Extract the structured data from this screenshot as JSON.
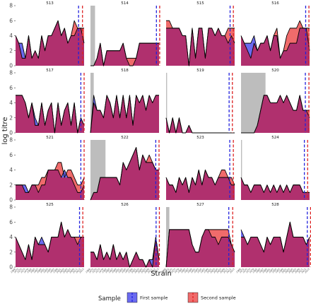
{
  "chart_data": {
    "type": "area",
    "ylabel": "log titre",
    "xlabel": "Strain",
    "ylim": [
      0,
      8
    ],
    "yticks": [
      0,
      2,
      4,
      6,
      8
    ],
    "grid": false,
    "legend": {
      "title": "Sample",
      "placement": "bottom",
      "entries": [
        {
          "name": "First sample",
          "fill": "#6b6bf0",
          "line": "#2222dd"
        },
        {
          "name": "Second sample",
          "fill": "#f06b6b",
          "line": "#dd2222"
        }
      ]
    },
    "overlap_color": "#b0306e",
    "shade_color": "#bdbdbd",
    "strain_ticks": [
      "1968",
      "1972",
      "1975",
      "1977",
      "1979",
      "1982",
      "1985",
      "1987",
      "1989",
      "1991",
      "1993",
      "1995",
      "1997",
      "1999",
      "2001",
      "2003",
      "2005",
      "2007",
      "2009",
      "2011",
      "2012",
      "2013"
    ],
    "panels": [
      {
        "id": "513",
        "first": [
          4,
          3,
          3,
          1,
          4,
          1,
          2,
          1,
          4,
          2,
          4,
          4,
          5,
          6,
          4,
          5,
          3,
          4,
          4,
          5,
          5,
          3
        ],
        "second": [
          4,
          3,
          1,
          1,
          4,
          1,
          2,
          1,
          4,
          2,
          4,
          4,
          5,
          6,
          4,
          5,
          3,
          4,
          6,
          5,
          5,
          5
        ],
        "shade_end": null,
        "vline1": 19.3,
        "vline2": 20.5
      },
      {
        "id": "514",
        "first": [
          0,
          0,
          1,
          3,
          0,
          2,
          2,
          2,
          2,
          2,
          3,
          1,
          0,
          0,
          1,
          3,
          3,
          3,
          3,
          3,
          3,
          3
        ],
        "second": [
          0,
          0,
          1,
          3,
          0,
          2,
          2,
          2,
          2,
          2,
          3,
          1,
          1,
          1,
          1,
          3,
          3,
          3,
          3,
          3,
          3,
          3
        ],
        "shade_end": 1.4,
        "vline1": 20.2,
        "vline2": 21.2
      },
      {
        "id": "515",
        "first": [
          5,
          5,
          5,
          5,
          5,
          4,
          4,
          0,
          5,
          1,
          5,
          5,
          1,
          5,
          5,
          4,
          5,
          4,
          4,
          3,
          4,
          3
        ],
        "second": [
          6,
          6,
          5,
          5,
          5,
          4,
          4,
          0,
          5,
          1,
          5,
          5,
          1,
          5,
          5,
          4,
          5,
          4,
          4,
          5,
          5,
          5
        ],
        "shade_end": null,
        "vline1": 19.6,
        "vline2": 20.6
      },
      {
        "id": "516",
        "first": [
          4,
          3,
          3,
          3,
          4,
          2,
          3,
          3,
          4,
          2,
          4,
          4,
          1,
          2,
          2,
          3,
          3,
          3,
          5,
          5,
          5,
          2
        ],
        "second": [
          4,
          3,
          2,
          1,
          3,
          2,
          3,
          3,
          4,
          2,
          4,
          5,
          1,
          2,
          4,
          5,
          5,
          5,
          6,
          5,
          5,
          5
        ],
        "shade_end": null,
        "vline1": 19.8,
        "vline2": 20.8
      },
      {
        "id": "517",
        "first": [
          5,
          5,
          5,
          4,
          2,
          4,
          2,
          1,
          4,
          1,
          3,
          4,
          0,
          4,
          1,
          3,
          4,
          1,
          4,
          0,
          2,
          1
        ],
        "second": [
          5,
          5,
          5,
          4,
          2,
          4,
          1,
          1,
          4,
          1,
          3,
          4,
          0,
          4,
          1,
          3,
          4,
          1,
          4,
          0,
          2,
          1
        ],
        "shade_end": null,
        "vline1": 20.0,
        "vline2": 21.0
      },
      {
        "id": "518",
        "first": [
          0,
          5,
          3,
          3,
          2,
          5,
          4,
          2,
          5,
          2,
          5,
          2,
          5,
          1,
          5,
          4,
          5,
          3,
          5,
          4,
          5,
          5
        ],
        "second": [
          0,
          4,
          3,
          3,
          2,
          5,
          4,
          2,
          5,
          2,
          5,
          2,
          5,
          1,
          5,
          4,
          5,
          3,
          5,
          4,
          5,
          5
        ],
        "shade_end": 1.0,
        "vline1": null,
        "vline2": null
      },
      {
        "id": "519",
        "first": [
          2,
          0,
          2,
          0,
          2,
          0,
          0,
          1,
          0,
          0,
          0,
          0,
          0,
          0,
          0,
          0,
          0,
          0,
          0,
          0,
          0,
          0
        ],
        "second": [
          2,
          0,
          2,
          0,
          2,
          0,
          0,
          1,
          0,
          0,
          0,
          0,
          0,
          0,
          0,
          0,
          0,
          0,
          0,
          0,
          0,
          0
        ],
        "shade_end": 0.3,
        "vline1": 19.3,
        "vline2": 20.3
      },
      {
        "id": "520",
        "first": [
          0,
          0,
          0,
          0,
          0,
          1,
          3,
          5,
          5,
          4,
          4,
          4,
          5,
          4,
          5,
          4,
          3,
          3,
          5,
          3,
          3,
          2
        ],
        "second": [
          0,
          0,
          0,
          0,
          0,
          1,
          3,
          5,
          5,
          4,
          4,
          4,
          5,
          4,
          5,
          4,
          3,
          3,
          5,
          3,
          3,
          3
        ],
        "shade_end": 7.5,
        "vline1": 19.7,
        "vline2": 20.8
      },
      {
        "id": "521",
        "first": [
          2,
          2,
          2,
          2,
          1,
          2,
          2,
          1,
          2,
          2,
          4,
          4,
          4,
          4,
          3,
          4,
          3,
          3,
          2,
          1,
          1,
          2
        ],
        "second": [
          2,
          2,
          2,
          1,
          1,
          2,
          2,
          2,
          3,
          3,
          4,
          4,
          4,
          5,
          5,
          3,
          4,
          4,
          3,
          2,
          2,
          3
        ],
        "shade_end": null,
        "vline1": 20.0,
        "vline2": 21.0
      },
      {
        "id": "522",
        "first": [
          0,
          1,
          1,
          3,
          3,
          3,
          3,
          3,
          3,
          2,
          5,
          4,
          5,
          6,
          7,
          4,
          6,
          5,
          5,
          5,
          4,
          4
        ],
        "second": [
          0,
          1,
          1,
          3,
          3,
          3,
          3,
          3,
          3,
          2,
          5,
          4,
          5,
          6,
          7,
          4,
          6,
          5,
          6,
          5,
          4,
          4
        ],
        "shade_end": 4.6,
        "vline1": 20.0,
        "vline2": 21.0
      },
      {
        "id": "523",
        "first": [
          3,
          2,
          2,
          1,
          3,
          2,
          3,
          1,
          3,
          2,
          4,
          2,
          4,
          3,
          3,
          2,
          3,
          3,
          3,
          3,
          2,
          2
        ],
        "second": [
          3,
          2,
          2,
          1,
          3,
          2,
          3,
          1,
          3,
          2,
          4,
          2,
          4,
          3,
          3,
          2,
          3,
          4,
          4,
          3,
          3,
          2
        ],
        "shade_end": null,
        "vline1": 19.5,
        "vline2": 20.6
      },
      {
        "id": "524",
        "first": [
          3,
          2,
          2,
          1,
          2,
          2,
          2,
          1,
          2,
          1,
          2,
          1,
          2,
          1,
          2,
          1,
          2,
          2,
          2,
          1,
          1,
          1
        ],
        "second": [
          3,
          2,
          2,
          1,
          2,
          2,
          2,
          1,
          2,
          1,
          2,
          1,
          2,
          1,
          2,
          1,
          2,
          2,
          2,
          1,
          1,
          1
        ],
        "shade_end": 0.3,
        "vline1": 19.4,
        "vline2": 20.4
      },
      {
        "id": "525",
        "first": [
          4,
          3,
          2,
          1,
          3,
          1,
          4,
          3,
          4,
          3,
          2,
          4,
          4,
          4,
          6,
          4,
          5,
          4,
          4,
          3,
          4,
          4
        ],
        "second": [
          4,
          3,
          2,
          1,
          3,
          1,
          4,
          3,
          3,
          3,
          2,
          4,
          4,
          4,
          6,
          4,
          5,
          4,
          4,
          4,
          4,
          4
        ],
        "shade_end": null,
        "vline1": 19.6,
        "vline2": 20.6
      },
      {
        "id": "526",
        "first": [
          2,
          2,
          1,
          3,
          1,
          2,
          1,
          3,
          1,
          2,
          1,
          2,
          0,
          1,
          2,
          1,
          1,
          0,
          1,
          1,
          4,
          1
        ],
        "second": [
          2,
          2,
          1,
          3,
          1,
          2,
          1,
          3,
          1,
          2,
          1,
          2,
          0,
          1,
          2,
          1,
          1,
          0,
          1,
          0,
          4,
          1
        ],
        "shade_end": null,
        "vline1": 20.1,
        "vline2": 21.1
      },
      {
        "id": "527",
        "first": [
          0,
          5,
          5,
          5,
          5,
          5,
          5,
          5,
          3,
          2,
          2,
          4,
          5,
          5,
          4,
          4,
          3,
          4,
          4,
          4,
          3,
          2
        ],
        "second": [
          0,
          5,
          5,
          5,
          5,
          5,
          5,
          5,
          3,
          2,
          2,
          4,
          5,
          5,
          5,
          5,
          5,
          5,
          5,
          5,
          3,
          2
        ],
        "shade_end": 1.0,
        "vline1": 19.2,
        "vline2": 20.4
      },
      {
        "id": "528",
        "first": [
          5,
          4,
          3,
          4,
          4,
          4,
          3,
          2,
          4,
          3,
          4,
          4,
          4,
          2,
          4,
          6,
          4,
          4,
          4,
          4,
          3,
          4
        ],
        "second": [
          4,
          4,
          3,
          4,
          4,
          4,
          3,
          2,
          4,
          3,
          4,
          4,
          4,
          2,
          4,
          6,
          4,
          4,
          4,
          4,
          3,
          4
        ],
        "shade_end": null,
        "vline1": 20.3,
        "vline2": 21.3
      }
    ]
  }
}
